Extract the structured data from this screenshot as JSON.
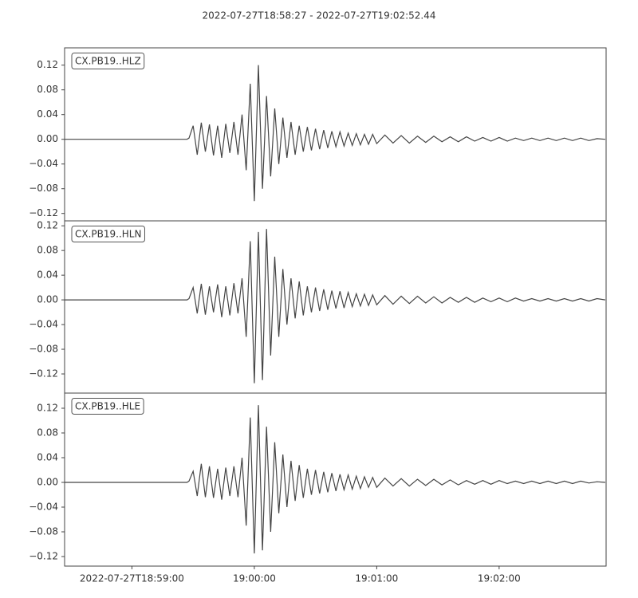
{
  "chart_data": {
    "type": "line",
    "title": "2022-07-27T18:58:27  -  2022-07-27T19:02:52.44",
    "xlim": [
      "18:58:27",
      "19:02:52.44"
    ],
    "xticks": [
      {
        "value": "18:59:00",
        "label": "2022-07-27T18:59:00"
      },
      "19:00:00",
      "19:01:00",
      "19:02:00"
    ],
    "yticks": [
      {
        "value": -0.12,
        "label": "−0.12"
      },
      {
        "value": -0.08,
        "label": "−0.08"
      },
      {
        "value": -0.04,
        "label": "−0.04"
      },
      {
        "value": 0,
        "label": "0.00"
      },
      {
        "value": 0.04,
        "label": "0.04"
      },
      {
        "value": 0.08,
        "label": "0.08"
      },
      {
        "value": 0.12,
        "label": "0.12"
      }
    ],
    "x": [
      "18:58:27",
      "18:59:27",
      "18:59:28",
      "18:59:30",
      "18:59:32",
      "18:59:34",
      "18:59:36",
      "18:59:38",
      "18:59:40",
      "18:59:42",
      "18:59:44",
      "18:59:46",
      "18:59:48",
      "18:59:50",
      "18:59:52",
      "18:59:54",
      "18:59:56",
      "18:59:58",
      "19:00:00",
      "19:00:02",
      "19:00:04",
      "19:00:06",
      "19:00:08",
      "19:00:10",
      "19:00:12",
      "19:00:14",
      "19:00:16",
      "19:00:18",
      "19:00:20",
      "19:00:22",
      "19:00:24",
      "19:00:26",
      "19:00:28",
      "19:00:30",
      "19:00:32",
      "19:00:34",
      "19:00:36",
      "19:00:38",
      "19:00:40",
      "19:00:42",
      "19:00:44",
      "19:00:46",
      "19:00:48",
      "19:00:50",
      "19:00:52",
      "19:00:54",
      "19:00:56",
      "19:00:58",
      "19:01:00",
      "19:01:04",
      "19:01:08",
      "19:01:12",
      "19:01:16",
      "19:01:20",
      "19:01:24",
      "19:01:28",
      "19:01:32",
      "19:01:36",
      "19:01:40",
      "19:01:44",
      "19:01:48",
      "19:01:52",
      "19:01:56",
      "19:02:00",
      "19:02:04",
      "19:02:08",
      "19:02:12",
      "19:02:16",
      "19:02:20",
      "19:02:24",
      "19:02:28",
      "19:02:32",
      "19:02:36",
      "19:02:40",
      "19:02:44",
      "19:02:48",
      "19:02:52"
    ],
    "series": [
      {
        "name": "CX.PB19..HLZ",
        "color": "#444444",
        "ylim": [
          -0.132,
          0.148
        ],
        "values": [
          0,
          0,
          0.002,
          0.022,
          -0.025,
          0.027,
          -0.02,
          0.024,
          -0.026,
          0.022,
          -0.03,
          0.025,
          -0.022,
          0.028,
          -0.025,
          0.04,
          -0.05,
          0.09,
          -0.1,
          0.12,
          -0.08,
          0.07,
          -0.06,
          0.05,
          -0.04,
          0.035,
          -0.03,
          0.028,
          -0.025,
          0.022,
          -0.02,
          0.02,
          -0.018,
          0.017,
          -0.016,
          0.015,
          -0.014,
          0.013,
          -0.012,
          0.012,
          -0.011,
          0.01,
          -0.01,
          0.009,
          -0.009,
          0.008,
          -0.008,
          0.008,
          -0.007,
          0.007,
          -0.006,
          0.006,
          -0.006,
          0.005,
          -0.005,
          0.005,
          -0.004,
          0.004,
          -0.004,
          0.004,
          -0.003,
          0.003,
          -0.003,
          0.003,
          -0.003,
          0.002,
          -0.002,
          0.002,
          -0.002,
          0.002,
          -0.002,
          0.002,
          -0.002,
          0.002,
          -0.002,
          0.001,
          0
        ]
      },
      {
        "name": "CX.PB19..HLN",
        "color": "#444444",
        "ylim": [
          -0.151,
          0.128
        ],
        "values": [
          0,
          0,
          0.002,
          0.02,
          -0.022,
          0.026,
          -0.024,
          0.022,
          -0.02,
          0.025,
          -0.028,
          0.022,
          -0.025,
          0.027,
          -0.022,
          0.035,
          -0.06,
          0.095,
          -0.135,
          0.11,
          -0.13,
          0.115,
          -0.09,
          0.07,
          -0.06,
          0.05,
          -0.04,
          0.035,
          -0.03,
          0.03,
          -0.025,
          0.022,
          -0.02,
          0.02,
          -0.018,
          0.017,
          -0.016,
          0.015,
          -0.014,
          0.014,
          -0.013,
          0.012,
          -0.011,
          0.01,
          -0.01,
          0.009,
          -0.009,
          0.008,
          -0.008,
          0.007,
          -0.007,
          0.006,
          -0.006,
          0.006,
          -0.005,
          0.005,
          -0.005,
          0.004,
          -0.004,
          0.004,
          -0.004,
          0.003,
          -0.003,
          0.003,
          -0.003,
          0.003,
          -0.002,
          0.002,
          -0.002,
          0.002,
          -0.002,
          0.002,
          -0.002,
          0.002,
          -0.002,
          0.002,
          0
        ]
      },
      {
        "name": "CX.PB19..HLE",
        "color": "#444444",
        "ylim": [
          -0.1355,
          0.1445
        ],
        "values": [
          0,
          0,
          0.002,
          0.018,
          -0.022,
          0.03,
          -0.024,
          0.026,
          -0.025,
          0.022,
          -0.028,
          0.024,
          -0.022,
          0.026,
          -0.024,
          0.04,
          -0.07,
          0.105,
          -0.115,
          0.125,
          -0.11,
          0.09,
          -0.08,
          0.065,
          -0.05,
          0.045,
          -0.04,
          0.035,
          -0.03,
          0.028,
          -0.025,
          0.022,
          -0.02,
          0.02,
          -0.018,
          0.017,
          -0.016,
          0.015,
          -0.014,
          0.013,
          -0.012,
          0.012,
          -0.011,
          0.01,
          -0.01,
          0.009,
          -0.008,
          0.008,
          -0.008,
          0.007,
          -0.006,
          0.006,
          -0.006,
          0.005,
          -0.005,
          0.005,
          -0.004,
          0.004,
          -0.004,
          0.003,
          -0.003,
          0.003,
          -0.003,
          0.003,
          -0.002,
          0.002,
          -0.002,
          0.002,
          -0.002,
          0.002,
          -0.002,
          0.002,
          -0.002,
          0.002,
          -0.001,
          0.001,
          0
        ]
      }
    ]
  }
}
